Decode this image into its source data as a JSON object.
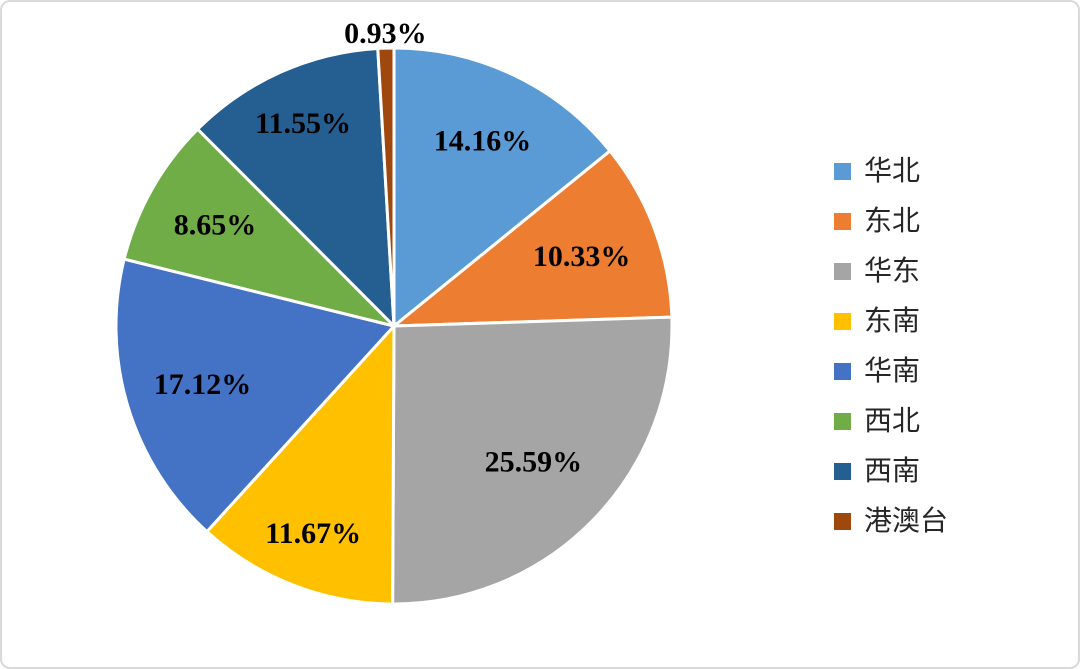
{
  "chart_data": {
    "type": "pie",
    "title": "",
    "legend_position": "right",
    "start_angle_deg": 0,
    "direction": "clockwise",
    "total": 100,
    "slice_border_color": "#FFFFFF",
    "label_color": "#000000",
    "legend_text_color": "#262626",
    "slices": [
      {
        "label": "华北",
        "value": 14.16,
        "display": "14.16%",
        "color": "#5B9BD5",
        "label_placement": "inside"
      },
      {
        "label": "东北",
        "value": 10.33,
        "display": "10.33%",
        "color": "#ED7D31",
        "label_placement": "inside"
      },
      {
        "label": "华东",
        "value": 25.59,
        "display": "25.59%",
        "color": "#A5A5A5",
        "label_placement": "inside"
      },
      {
        "label": "东南",
        "value": 11.67,
        "display": "11.67%",
        "color": "#FFC000",
        "label_placement": "inside"
      },
      {
        "label": "华南",
        "value": 17.12,
        "display": "17.12%",
        "color": "#4472C4",
        "label_placement": "inside"
      },
      {
        "label": "西北",
        "value": 8.65,
        "display": "8.65%",
        "color": "#70AD47",
        "label_placement": "inside"
      },
      {
        "label": "西南",
        "value": 11.55,
        "display": "11.55%",
        "color": "#255E91",
        "label_placement": "inside"
      },
      {
        "label": "港澳台",
        "value": 0.93,
        "display": "0.93%",
        "color": "#9E480E",
        "label_placement": "outside"
      }
    ]
  }
}
